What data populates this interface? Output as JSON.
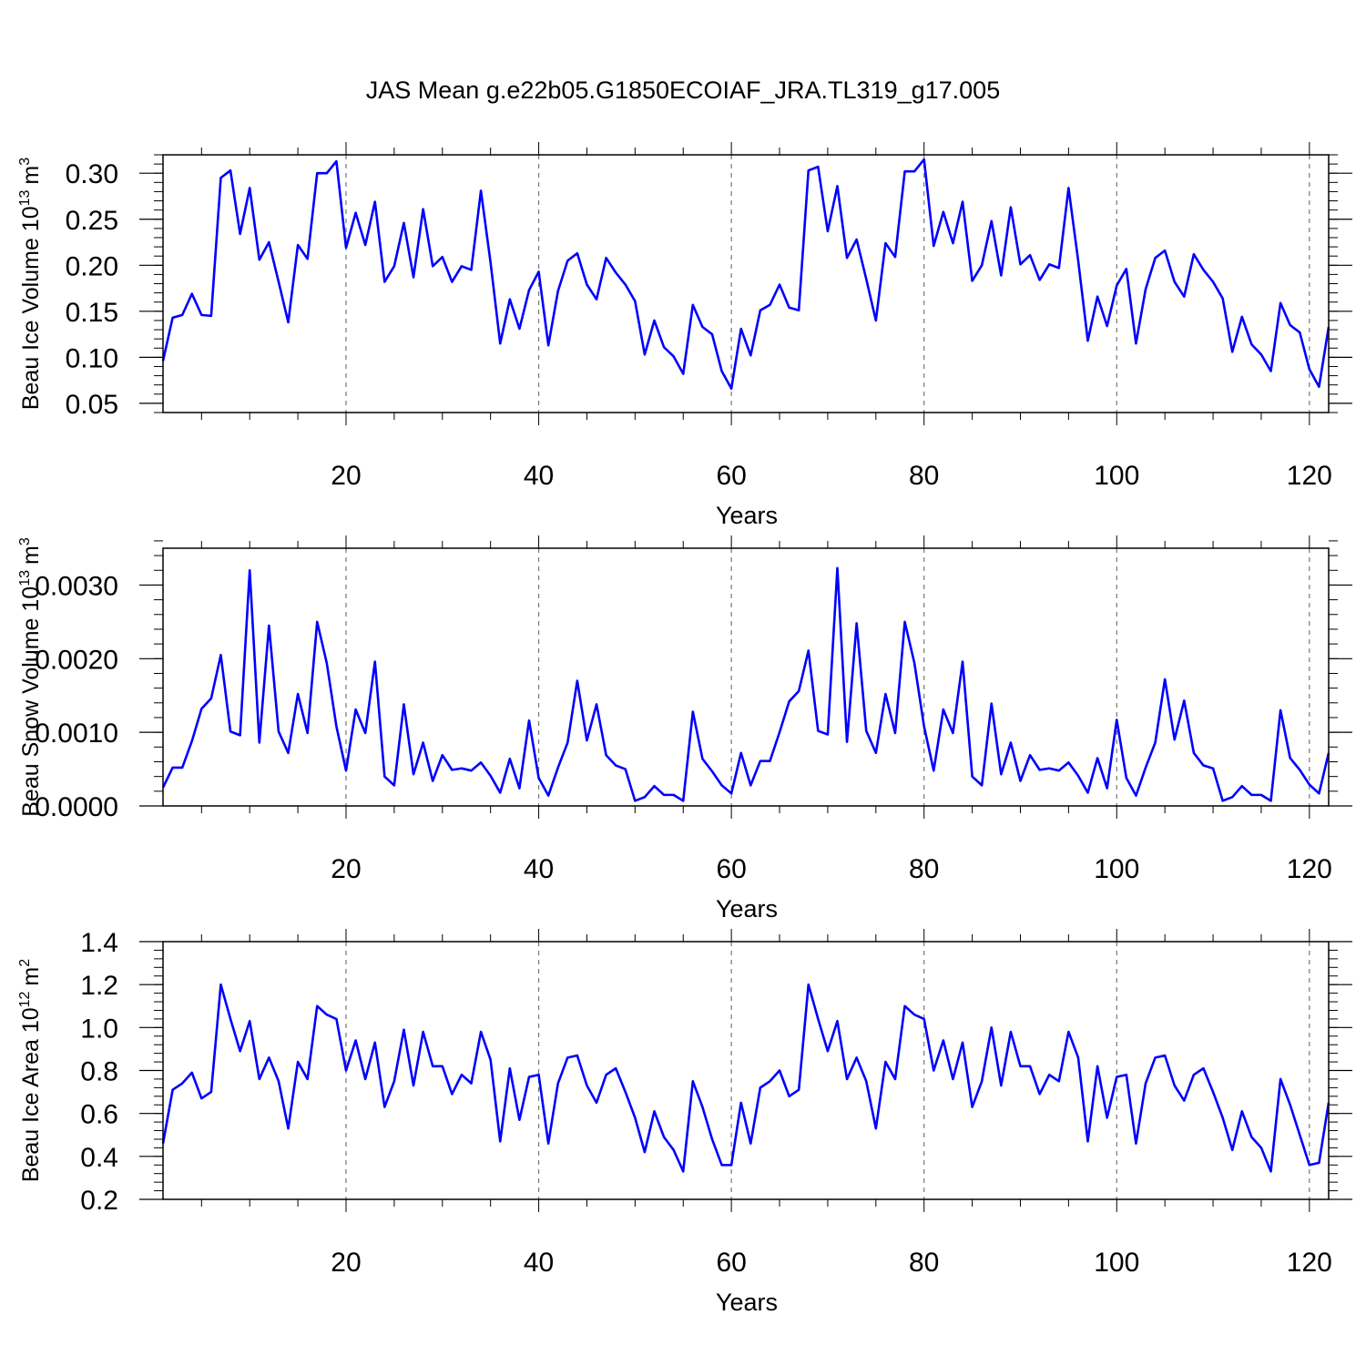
{
  "title": "JAS Mean g.e22b05.G1850ECOIAF_JRA.TL319_g17.005",
  "line_color": "#0000ff",
  "chart_data": [
    {
      "type": "line",
      "ylabel_main": "Beau Ice Volume 10",
      "ylabel_sup": "13",
      "ylabel_unit": "m",
      "ylabel_unit_sup": "3",
      "xlabel": "Years",
      "xlim": [
        1,
        122
      ],
      "ylim": [
        0.04,
        0.32
      ],
      "x_ticks": [
        20,
        40,
        60,
        80,
        100,
        120
      ],
      "x_tick_labels": [
        "20",
        "40",
        "60",
        "80",
        "100",
        "120"
      ],
      "y_ticks": [
        0.05,
        0.1,
        0.15,
        0.2,
        0.25,
        0.3
      ],
      "y_tick_labels": [
        "0.05",
        "0.10",
        "0.15",
        "0.20",
        "0.25",
        "0.30"
      ],
      "y_minor_step": 0.01,
      "series": [
        {
          "name": "Beau Ice Volume",
          "values": [
            0.096,
            0.143,
            0.146,
            0.169,
            0.146,
            0.145,
            0.295,
            0.303,
            0.234,
            0.284,
            0.206,
            0.225,
            0.182,
            0.138,
            0.222,
            0.207,
            0.3,
            0.3,
            0.313,
            0.219,
            0.257,
            0.222,
            0.269,
            0.182,
            0.199,
            0.246,
            0.187,
            0.261,
            0.199,
            0.209,
            0.182,
            0.199,
            0.195,
            0.281,
            0.203,
            0.115,
            0.163,
            0.131,
            0.173,
            0.193,
            0.113,
            0.172,
            0.205,
            0.213,
            0.179,
            0.163,
            0.208,
            0.192,
            0.179,
            0.161,
            0.103,
            0.14,
            0.111,
            0.101,
            0.082,
            0.157,
            0.133,
            0.125,
            0.085,
            0.066,
            0.131,
            0.102,
            0.151,
            0.157,
            0.179,
            0.154,
            0.151,
            0.303,
            0.307,
            0.237,
            0.286,
            0.208,
            0.228,
            0.185,
            0.14,
            0.224,
            0.209,
            0.302,
            0.302,
            0.315,
            0.221,
            0.258,
            0.224,
            0.269,
            0.183,
            0.2,
            0.248,
            0.189,
            0.263,
            0.201,
            0.211,
            0.184,
            0.201,
            0.197,
            0.284,
            0.205,
            0.118,
            0.166,
            0.134,
            0.178,
            0.196,
            0.115,
            0.174,
            0.208,
            0.216,
            0.182,
            0.166,
            0.212,
            0.195,
            0.182,
            0.164,
            0.106,
            0.144,
            0.114,
            0.103,
            0.085,
            0.159,
            0.135,
            0.127,
            0.087,
            0.068,
            0.133
          ]
        }
      ]
    },
    {
      "type": "line",
      "ylabel_main": "Beau Snow Volume 10",
      "ylabel_sup": "13",
      "ylabel_unit": "m",
      "ylabel_unit_sup": "3",
      "xlabel": "Years",
      "xlim": [
        1,
        122
      ],
      "ylim": [
        0.0,
        0.0035
      ],
      "x_ticks": [
        20,
        40,
        60,
        80,
        100,
        120
      ],
      "x_tick_labels": [
        "20",
        "40",
        "60",
        "80",
        "100",
        "120"
      ],
      "y_ticks": [
        0.0,
        0.001,
        0.002,
        0.003
      ],
      "y_tick_labels": [
        "0.0000",
        "0.0010",
        "0.0020",
        "0.0030"
      ],
      "y_minor_step": 0.0002,
      "series": [
        {
          "name": "Beau Snow Volume",
          "values": [
            0.00025,
            0.00052,
            0.00052,
            0.00088,
            0.00132,
            0.00146,
            0.00205,
            0.00101,
            0.00096,
            0.0032,
            0.00086,
            0.00245,
            0.00101,
            0.00072,
            0.00152,
            0.00099,
            0.0025,
            0.00194,
            0.00108,
            0.00048,
            0.00131,
            0.00099,
            0.00196,
            0.0004,
            0.00028,
            0.00138,
            0.00043,
            0.00086,
            0.00034,
            0.00069,
            0.00049,
            0.00051,
            0.00048,
            0.00059,
            0.00041,
            0.00018,
            0.00064,
            0.00024,
            0.00116,
            0.00038,
            0.00014,
            0.00052,
            0.00086,
            0.0017,
            0.00089,
            0.00138,
            0.00069,
            0.00055,
            0.0005,
            7e-05,
            0.00012,
            0.00027,
            0.00015,
            0.00015,
            7e-05,
            0.00128,
            0.00064,
            0.00047,
            0.00028,
            0.00017,
            0.00072,
            0.00028,
            0.00061,
            0.00061,
            0.001,
            0.00142,
            0.00156,
            0.00211,
            0.00102,
            0.00097,
            0.00323,
            0.00087,
            0.00248,
            0.00102,
            0.00072,
            0.00152,
            0.00099,
            0.0025,
            0.00194,
            0.00108,
            0.00048,
            0.00131,
            0.00099,
            0.00196,
            0.0004,
            0.00028,
            0.00139,
            0.00043,
            0.00086,
            0.00034,
            0.00069,
            0.00049,
            0.00051,
            0.00048,
            0.00059,
            0.00041,
            0.00018,
            0.00065,
            0.00024,
            0.00117,
            0.00038,
            0.00014,
            0.00052,
            0.00086,
            0.00172,
            0.0009,
            0.00143,
            0.00072,
            0.00055,
            0.00051,
            7e-05,
            0.00012,
            0.00027,
            0.00015,
            0.00015,
            7e-05,
            0.0013,
            0.00065,
            0.00049,
            0.00029,
            0.00017,
            0.00072
          ]
        }
      ]
    },
    {
      "type": "line",
      "ylabel_main": "Beau Ice Area 10",
      "ylabel_sup": "12",
      "ylabel_unit": "m",
      "ylabel_unit_sup": "2",
      "xlabel": "Years",
      "xlim": [
        1,
        122
      ],
      "ylim": [
        0.2,
        1.4
      ],
      "x_ticks": [
        20,
        40,
        60,
        80,
        100,
        120
      ],
      "x_tick_labels": [
        "20",
        "40",
        "60",
        "80",
        "100",
        "120"
      ],
      "y_ticks": [
        0.2,
        0.4,
        0.6,
        0.8,
        1.0,
        1.2,
        1.4
      ],
      "y_tick_labels": [
        "0.2",
        "0.4",
        "0.6",
        "0.8",
        "1.0",
        "1.2",
        "1.4"
      ],
      "y_minor_step": 0.04,
      "series": [
        {
          "name": "Beau Ice Area",
          "values": [
            0.46,
            0.71,
            0.74,
            0.79,
            0.67,
            0.7,
            1.2,
            1.04,
            0.89,
            1.03,
            0.76,
            0.86,
            0.75,
            0.53,
            0.84,
            0.76,
            1.1,
            1.06,
            1.04,
            0.8,
            0.94,
            0.76,
            0.93,
            0.63,
            0.75,
            0.99,
            0.73,
            0.98,
            0.82,
            0.82,
            0.69,
            0.78,
            0.74,
            0.98,
            0.85,
            0.47,
            0.81,
            0.57,
            0.77,
            0.78,
            0.46,
            0.74,
            0.86,
            0.87,
            0.73,
            0.65,
            0.78,
            0.81,
            0.7,
            0.58,
            0.42,
            0.61,
            0.49,
            0.43,
            0.33,
            0.75,
            0.63,
            0.48,
            0.36,
            0.36,
            0.65,
            0.46,
            0.72,
            0.75,
            0.8,
            0.68,
            0.71,
            1.2,
            1.04,
            0.89,
            1.03,
            0.76,
            0.86,
            0.75,
            0.53,
            0.84,
            0.76,
            1.1,
            1.06,
            1.04,
            0.8,
            0.94,
            0.76,
            0.93,
            0.63,
            0.75,
            1.0,
            0.73,
            0.98,
            0.82,
            0.82,
            0.69,
            0.78,
            0.75,
            0.98,
            0.86,
            0.47,
            0.82,
            0.58,
            0.77,
            0.78,
            0.46,
            0.74,
            0.86,
            0.87,
            0.73,
            0.66,
            0.78,
            0.81,
            0.7,
            0.58,
            0.43,
            0.61,
            0.49,
            0.44,
            0.33,
            0.76,
            0.64,
            0.5,
            0.36,
            0.37,
            0.65
          ]
        }
      ]
    }
  ]
}
